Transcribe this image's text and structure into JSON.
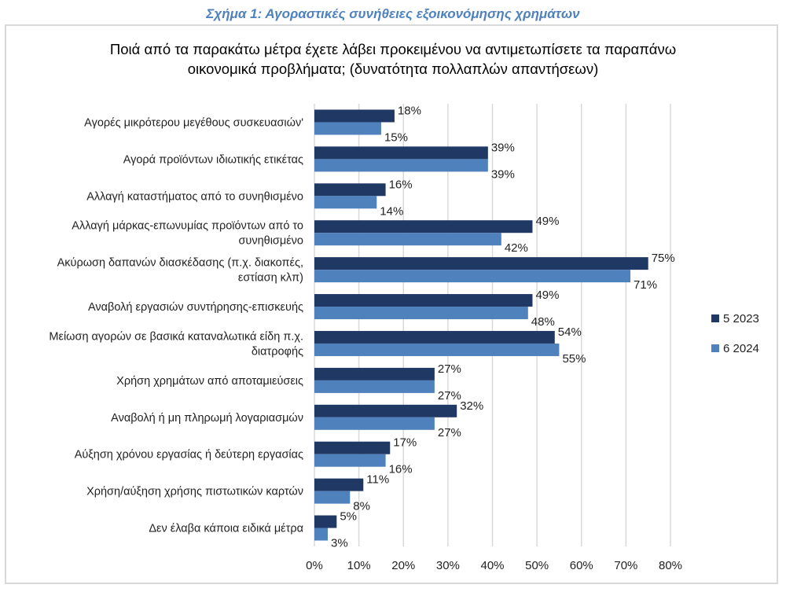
{
  "figure_title": "Σχήμα 1: Αγοραστικές συνήθειες εξοικονόμησης χρημάτων",
  "chart_data": {
    "type": "bar",
    "orientation": "horizontal",
    "title_lines": [
      "Ποιά από τα παρακάτω μέτρα έχετε λάβει προκειμένου να αντιμετωπίσετε τα παραπάνω",
      "οικονομικά προβλήματα; (δυνατότητα πολλαπλών απαντήσεων)"
    ],
    "categories": [
      [
        "Αγορές μικρότερου μεγέθους συσκευασιών'"
      ],
      [
        "Αγορά προϊόντων ιδιωτικής ετικέτας"
      ],
      [
        "Αλλαγή καταστήματος από το συνηθισμένο"
      ],
      [
        "Αλλαγή μάρκας-επωνυμίας προϊόντων από το",
        "συνηθισμένο"
      ],
      [
        "Ακύρωση δαπανών διασκέδασης (π.χ. διακοπές,",
        "εστίαση κλπ)"
      ],
      [
        "Αναβολή εργασιών συντήρησης-επισκευής"
      ],
      [
        "Μείωση αγορών σε βασικά καταναλωτικά είδη π.χ.",
        "διατροφής"
      ],
      [
        "Χρήση χρημάτων από αποταμιεύσεις"
      ],
      [
        "Αναβολή ή μη πληρωμή λογαριασμών"
      ],
      [
        "Αύξηση χρόνου εργασίας ή δεύτερη εργασίας"
      ],
      [
        "Χρήση/αύξηση χρήσης πιστωτικών καρτών"
      ],
      [
        "Δεν έλαβα κάποια ειδικά μέτρα"
      ]
    ],
    "series": [
      {
        "name": "5 2023",
        "color": "#1f3864",
        "values": [
          18,
          39,
          16,
          49,
          75,
          49,
          54,
          27,
          32,
          17,
          11,
          5
        ]
      },
      {
        "name": "6 2024",
        "color": "#4f81bd",
        "values": [
          15,
          39,
          14,
          42,
          71,
          48,
          55,
          27,
          27,
          16,
          8,
          3
        ]
      }
    ],
    "xlim": [
      0,
      80
    ],
    "xticks": [
      "0%",
      "10%",
      "20%",
      "30%",
      "40%",
      "50%",
      "60%",
      "70%",
      "80%"
    ],
    "grid": true,
    "legend": "right"
  }
}
